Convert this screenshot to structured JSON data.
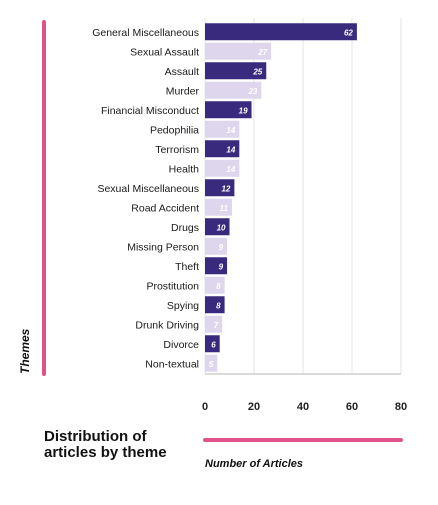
{
  "caption": "Distribution of articles by theme",
  "colors": {
    "dark": "#3a2a7e",
    "light": "#ddd6ec",
    "accent": "#e0528a",
    "grid": "#e6e6e6"
  },
  "chart_data": {
    "type": "bar",
    "orientation": "horizontal",
    "title": "",
    "xlabel": "Number of Articles",
    "ylabel": "Themes",
    "xlim": [
      0,
      80
    ],
    "xticks": [
      0,
      20,
      40,
      60,
      80
    ],
    "grid": true,
    "categories": [
      "General Miscellaneous",
      "Sexual Assault",
      "Assault",
      "Murder",
      "Financial Misconduct",
      "Pedophilia",
      "Terrorism",
      "Health",
      "Sexual Miscellaneous",
      "Road Accident",
      "Drugs",
      "Missing Person",
      "Theft",
      "Prostitution",
      "Spying",
      "Drunk Driving",
      "Divorce",
      "Non-textual"
    ],
    "values": [
      62,
      27,
      25,
      23,
      19,
      14,
      14,
      14,
      12,
      11,
      10,
      9,
      9,
      8,
      8,
      7,
      6,
      5
    ],
    "bar_colors": [
      "dark",
      "light",
      "dark",
      "light",
      "dark",
      "light",
      "dark",
      "light",
      "dark",
      "light",
      "dark",
      "light",
      "dark",
      "light",
      "dark",
      "light",
      "dark",
      "light"
    ]
  }
}
